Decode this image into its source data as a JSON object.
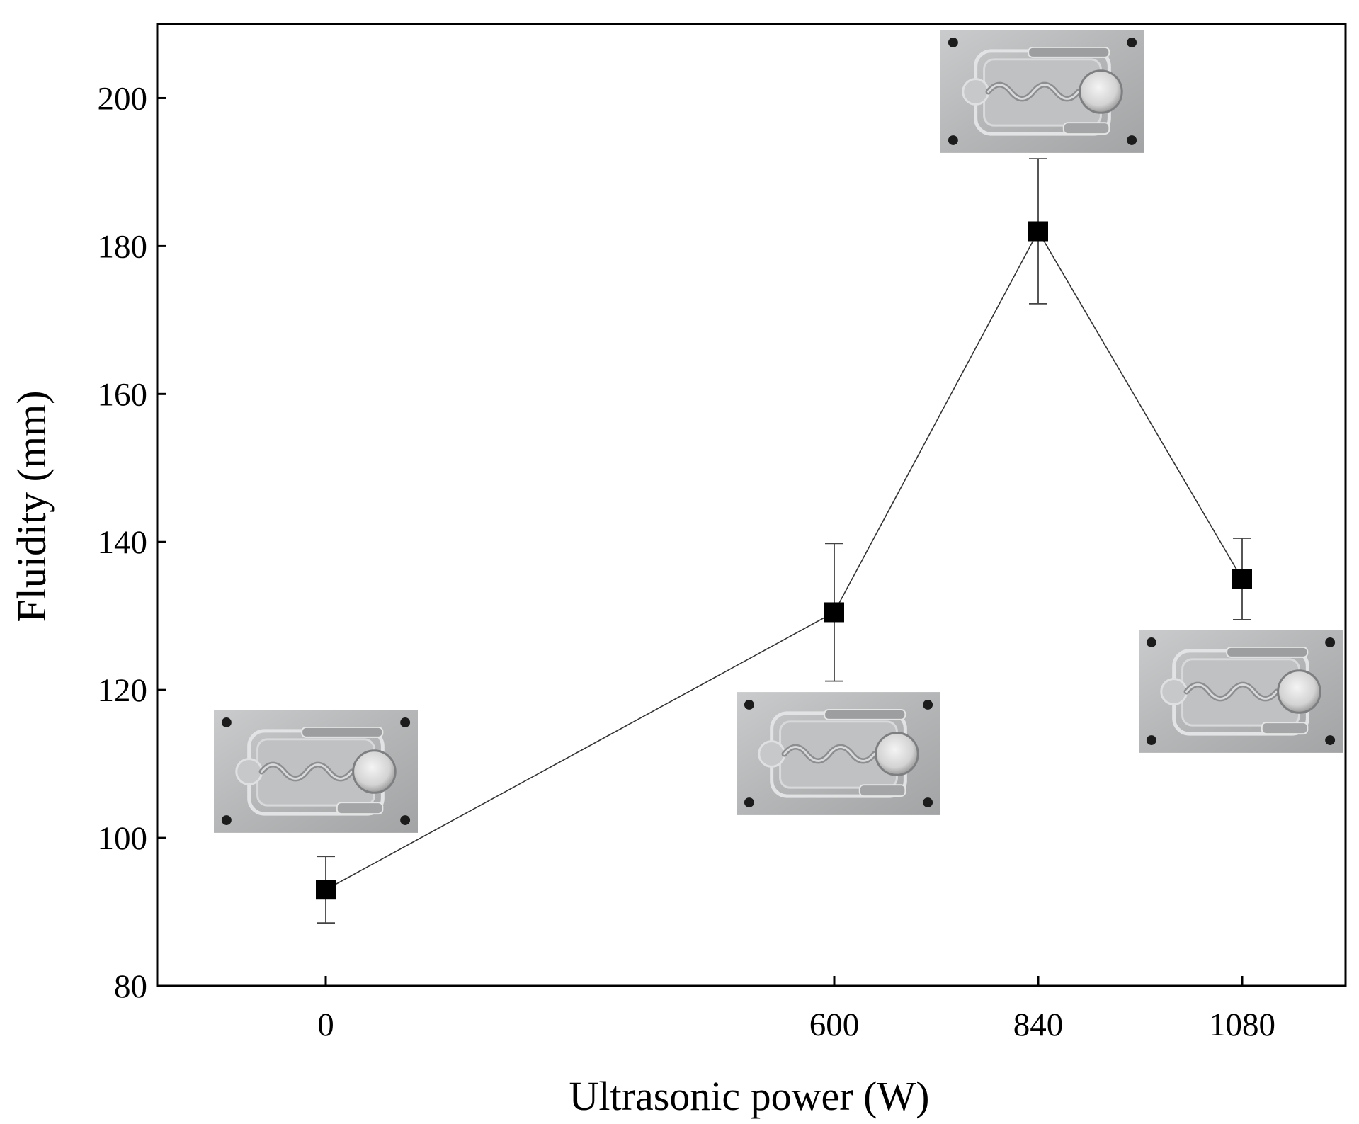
{
  "chart_data": {
    "type": "scatter",
    "title": "",
    "xlabel": "Ultrasonic power (W)",
    "ylabel": "Fluidity (mm)",
    "x_ticks": [
      0,
      600,
      840,
      1080
    ],
    "y_ticks": [
      80,
      100,
      120,
      140,
      160,
      180,
      200
    ],
    "ylim": [
      80,
      210
    ],
    "grid": false,
    "legend": "none",
    "connect_points": true,
    "marker": "filled-square",
    "color": "#000000",
    "series": [
      {
        "x": [
          0,
          600,
          840,
          1080
        ],
        "y": [
          93,
          130.5,
          182,
          135
        ],
        "error": [
          4.5,
          9.3,
          9.8,
          5.5
        ]
      }
    ],
    "annotations": [
      {
        "kind": "sample-photo",
        "power": 0,
        "icon": "casting-mold-photo"
      },
      {
        "kind": "sample-photo",
        "power": 600,
        "icon": "casting-mold-photo"
      },
      {
        "kind": "sample-photo",
        "power": 840,
        "icon": "casting-mold-photo"
      },
      {
        "kind": "sample-photo",
        "power": 1080,
        "icon": "casting-mold-photo"
      }
    ]
  }
}
